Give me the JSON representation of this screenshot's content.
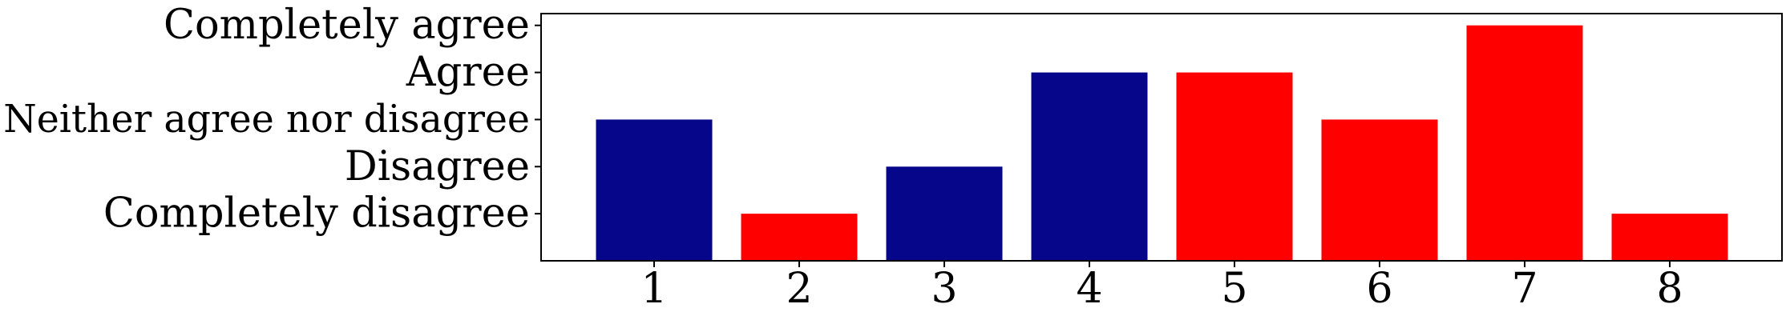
{
  "chart_data": {
    "type": "bar",
    "categories": [
      "1",
      "2",
      "3",
      "4",
      "5",
      "6",
      "7",
      "8"
    ],
    "values": [
      3,
      1,
      2,
      4,
      4,
      3,
      5,
      1
    ],
    "bar_colors": [
      "#06068a",
      "#ff0000",
      "#06068a",
      "#06068a",
      "#ff0000",
      "#ff0000",
      "#ff0000",
      "#ff0000"
    ],
    "category_label_colors": [
      "#000000",
      "#ff0000",
      "#000000",
      "#000000",
      "#ff0000",
      "#ff0000",
      "#ff0000",
      "#ff0000"
    ],
    "y_ticks": [
      {
        "value": 1,
        "label": "Completely disagree"
      },
      {
        "value": 2,
        "label": "Disagree"
      },
      {
        "value": 3,
        "label": "Neither agree nor disagree"
      },
      {
        "value": 4,
        "label": "Agree"
      },
      {
        "value": 5,
        "label": "Completely agree"
      }
    ],
    "ylim": [
      0,
      5.25
    ],
    "title": "",
    "xlabel": "",
    "ylabel": "",
    "grid": false,
    "legend": "none"
  }
}
